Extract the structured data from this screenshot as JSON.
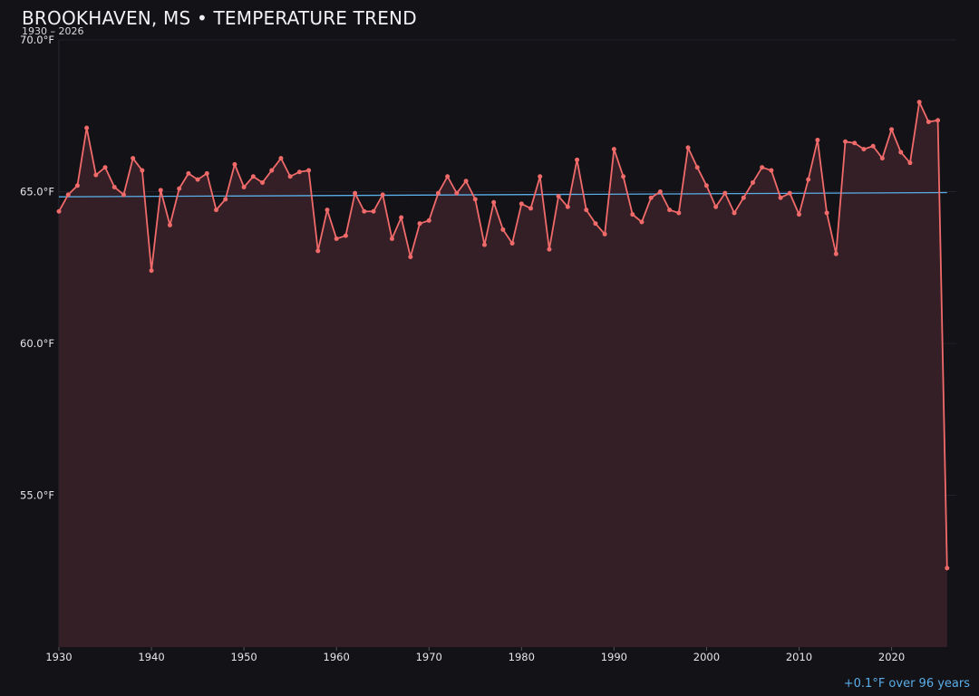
{
  "header": {
    "title": "BROOKHAVEN, MS • TEMPERATURE TREND",
    "subtitle": "1930 – 2026",
    "trend_note": "+0.1°F over 96 years"
  },
  "colors": {
    "background": "#131217",
    "series_line": "#f06a6a",
    "series_fill": "#341f26",
    "trend_line": "#5aaee8",
    "grid": "#22202a"
  },
  "chart_data": {
    "type": "line",
    "title": "BROOKHAVEN, MS • TEMPERATURE TREND",
    "subtitle": "1930 – 2026",
    "xlabel": "",
    "ylabel": "",
    "xlim": [
      1930,
      2027
    ],
    "ylim": [
      50.0,
      70.0
    ],
    "x_ticks": [
      1930,
      1940,
      1950,
      1960,
      1970,
      1980,
      1990,
      2000,
      2010,
      2020
    ],
    "y_ticks": [
      55.0,
      60.0,
      65.0,
      70.0
    ],
    "y_tick_labels": [
      "55.0°F",
      "60.0°F",
      "65.0°F",
      "70.0°F"
    ],
    "grid": true,
    "area_fill": true,
    "series": [
      {
        "x": [
          1930,
          1931,
          1932,
          1933,
          1934,
          1935,
          1936,
          1937,
          1938,
          1939,
          1940,
          1941,
          1942,
          1943,
          1944,
          1945,
          1946,
          1947,
          1948,
          1949,
          1950,
          1951,
          1952,
          1953,
          1954,
          1955,
          1956,
          1957,
          1958,
          1959,
          1960,
          1961,
          1962,
          1963,
          1964,
          1965,
          1966,
          1967,
          1968,
          1969,
          1970,
          1971,
          1972,
          1973,
          1974,
          1975,
          1976,
          1977,
          1978,
          1979,
          1980,
          1981,
          1982,
          1983,
          1984,
          1985,
          1986,
          1987,
          1988,
          1989,
          1990,
          1991,
          1992,
          1993,
          1994,
          1995,
          1996,
          1997,
          1998,
          1999,
          2000,
          2001,
          2002,
          2003,
          2004,
          2005,
          2006,
          2007,
          2008,
          2009,
          2010,
          2011,
          2012,
          2013,
          2014,
          2015,
          2016,
          2017,
          2018,
          2019,
          2020,
          2021,
          2022,
          2023,
          2024,
          2025,
          2026
        ],
        "values": [
          64.35,
          64.9,
          65.2,
          67.1,
          65.55,
          65.8,
          65.15,
          64.9,
          66.1,
          65.7,
          62.4,
          65.05,
          63.9,
          65.1,
          65.6,
          65.4,
          65.6,
          64.4,
          64.75,
          65.9,
          65.15,
          65.5,
          65.3,
          65.7,
          66.1,
          65.5,
          65.65,
          65.7,
          63.05,
          64.4,
          63.45,
          63.55,
          64.95,
          64.35,
          64.35,
          64.9,
          63.45,
          64.15,
          62.85,
          63.95,
          64.05,
          64.95,
          65.5,
          64.95,
          65.35,
          64.75,
          63.25,
          64.65,
          63.75,
          63.3,
          64.6,
          64.45,
          65.5,
          63.1,
          64.85,
          64.5,
          66.05,
          64.4,
          63.95,
          63.6,
          66.4,
          65.5,
          64.25,
          64.0,
          64.8,
          65.0,
          64.4,
          64.3,
          66.45,
          65.8,
          65.2,
          64.5,
          64.95,
          64.3,
          64.8,
          65.3,
          65.8,
          65.7,
          64.8,
          64.95,
          64.25,
          65.4,
          66.7,
          64.3,
          62.95,
          66.65,
          66.6,
          66.4,
          66.5,
          66.1,
          67.05,
          66.3,
          65.95,
          67.95,
          67.3,
          67.35,
          52.6
        ]
      }
    ],
    "trend": {
      "start": [
        1930,
        64.83
      ],
      "end": [
        2026,
        64.97
      ]
    }
  }
}
